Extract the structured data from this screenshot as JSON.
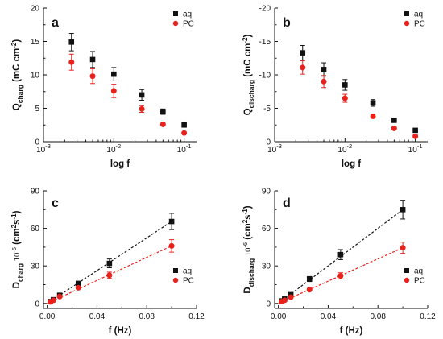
{
  "colors": {
    "aq": "#111111",
    "pc": "#e8211d",
    "axis": "#111111"
  },
  "chart_data": [
    {
      "panel": "a",
      "type": "scatter",
      "xscale": "log",
      "xlim": [
        0.001,
        0.15
      ],
      "ylim": [
        0,
        20
      ],
      "xticks": [
        0.001,
        0.01,
        0.1
      ],
      "xtick_labels": [
        [
          "10",
          "-3"
        ],
        [
          "10",
          "-2"
        ],
        [
          "10",
          "-1"
        ]
      ],
      "yticks": [
        0,
        5,
        10,
        15,
        20
      ],
      "ytick_labels": [
        "0",
        "5",
        "10",
        "15",
        "20"
      ],
      "xlabel": "log f",
      "ylabel_main": "Q",
      "ylabel_sub": "charg",
      "ylabel_unit": " (mC cm",
      "ylabel_exp": "-2",
      "ylabel_close": ")",
      "legend_position": "top-right",
      "series": [
        {
          "name": "aq",
          "marker": "square",
          "x": [
            0.0025,
            0.005,
            0.01,
            0.025,
            0.05,
            0.1
          ],
          "y": [
            14.9,
            12.3,
            10.1,
            7.0,
            4.5,
            2.5
          ],
          "err": [
            1.3,
            1.2,
            1.0,
            0.8,
            0.4,
            0.2
          ]
        },
        {
          "name": "PC",
          "marker": "circle",
          "x": [
            0.0025,
            0.005,
            0.01,
            0.025,
            0.05,
            0.1
          ],
          "y": [
            11.9,
            9.8,
            7.6,
            4.9,
            2.6,
            1.3
          ],
          "err": [
            1.2,
            1.1,
            1.0,
            0.5,
            0.2,
            0.1
          ]
        }
      ]
    },
    {
      "panel": "b",
      "type": "scatter",
      "xscale": "log",
      "xlim": [
        0.001,
        0.15
      ],
      "ylim": [
        0,
        -20
      ],
      "xticks": [
        0.001,
        0.01,
        0.1
      ],
      "xtick_labels": [
        [
          "10",
          "-3"
        ],
        [
          "10",
          "-2"
        ],
        [
          "10",
          "-1"
        ]
      ],
      "yticks": [
        0,
        -5,
        -10,
        -15,
        -20
      ],
      "ytick_labels": [
        "0",
        "-5",
        "-10",
        "-15",
        "-20"
      ],
      "xlabel": "log f",
      "ylabel_main": "Q",
      "ylabel_sub": "discharg",
      "ylabel_unit": " (mC cm",
      "ylabel_exp": "-2",
      "ylabel_close": ")",
      "legend_position": "top-right",
      "series": [
        {
          "name": "aq",
          "marker": "square",
          "x": [
            0.0025,
            0.005,
            0.01,
            0.025,
            0.05,
            0.1
          ],
          "y": [
            -13.3,
            -10.8,
            -8.5,
            -5.8,
            -3.2,
            -1.7
          ],
          "err": [
            1.1,
            1.0,
            0.8,
            0.5,
            0.2,
            0.2
          ]
        },
        {
          "name": "PC",
          "marker": "circle",
          "x": [
            0.0025,
            0.005,
            0.01,
            0.025,
            0.05,
            0.1
          ],
          "y": [
            -11.1,
            -9.0,
            -6.5,
            -3.8,
            -2.0,
            -0.8
          ],
          "err": [
            1.0,
            0.9,
            0.6,
            0.3,
            0.2,
            0.2
          ]
        }
      ]
    },
    {
      "panel": "c",
      "type": "scatter",
      "xscale": "linear",
      "xlim": [
        -0.003,
        0.12
      ],
      "ylim": [
        -4,
        90
      ],
      "xticks": [
        0.0,
        0.04,
        0.08,
        0.12
      ],
      "xtick_labels": [
        [
          "0.00",
          ""
        ],
        [
          "0.04",
          ""
        ],
        [
          "0.08",
          ""
        ],
        [
          "0.12",
          ""
        ]
      ],
      "yticks": [
        0,
        30,
        60,
        90
      ],
      "ytick_labels": [
        "0",
        "30",
        "60",
        "90"
      ],
      "xlabel": "f (Hz)",
      "ylabel_main": "D",
      "ylabel_sub": "charg",
      "ylabel_pre_exp": "10",
      "ylabel_pre_exp_sup": "-6",
      "ylabel_unit": " (cm",
      "ylabel_exp": "2",
      "ylabel_mid": "s",
      "ylabel_exp2": "-1",
      "ylabel_close": ")",
      "legend_position": "bottom-right",
      "series": [
        {
          "name": "aq",
          "marker": "square",
          "x": [
            0.0025,
            0.005,
            0.01,
            0.025,
            0.05,
            0.1
          ],
          "y": [
            1.5,
            3.0,
            6.5,
            16.0,
            32.0,
            65.5
          ],
          "err": [
            0.3,
            0.5,
            1.0,
            1.5,
            3.5,
            6.5
          ],
          "fit": [
            0.0,
            0.1,
            0.0,
            65.5
          ]
        },
        {
          "name": "PC",
          "marker": "circle",
          "x": [
            0.0025,
            0.005,
            0.01,
            0.025,
            0.05,
            0.1
          ],
          "y": [
            1.2,
            2.5,
            5.5,
            12.5,
            22.5,
            46.0
          ],
          "err": [
            0.3,
            0.5,
            0.8,
            1.0,
            2.5,
            5.0
          ],
          "fit": [
            0.0,
            0.1,
            0.0,
            46.0
          ]
        }
      ]
    },
    {
      "panel": "d",
      "type": "scatter",
      "xscale": "linear",
      "xlim": [
        -0.003,
        0.12
      ],
      "ylim": [
        -4,
        90
      ],
      "xticks": [
        0.0,
        0.04,
        0.08,
        0.12
      ],
      "xtick_labels": [
        [
          "0.00",
          ""
        ],
        [
          "0.04",
          ""
        ],
        [
          "0.08",
          ""
        ],
        [
          "0.12",
          ""
        ]
      ],
      "yticks": [
        0,
        30,
        60,
        90
      ],
      "ytick_labels": [
        "0",
        "30",
        "60",
        "90"
      ],
      "xlabel": "f (Hz)",
      "ylabel_main": "D",
      "ylabel_sub": "discharg",
      "ylabel_pre_exp": "10",
      "ylabel_pre_exp_sup": "-6",
      "ylabel_unit": " (cm",
      "ylabel_exp": "2",
      "ylabel_mid": "s",
      "ylabel_exp2": "-1",
      "ylabel_close": ")",
      "legend_position": "bottom-right",
      "series": [
        {
          "name": "aq",
          "marker": "square",
          "x": [
            0.0025,
            0.005,
            0.01,
            0.025,
            0.05,
            0.1
          ],
          "y": [
            2.0,
            3.5,
            7.0,
            19.5,
            39.0,
            75.0
          ],
          "err": [
            0.3,
            0.5,
            1.0,
            2.0,
            4.0,
            7.5
          ],
          "fit": [
            0.0,
            0.1,
            0.0,
            75.0
          ]
        },
        {
          "name": "PC",
          "marker": "circle",
          "x": [
            0.0025,
            0.005,
            0.01,
            0.025,
            0.05,
            0.1
          ],
          "y": [
            1.5,
            2.5,
            5.0,
            11.0,
            22.0,
            44.5
          ],
          "err": [
            0.3,
            0.4,
            0.6,
            1.0,
            2.5,
            4.5
          ],
          "fit": [
            0.0,
            0.1,
            0.0,
            44.5
          ]
        }
      ]
    }
  ]
}
